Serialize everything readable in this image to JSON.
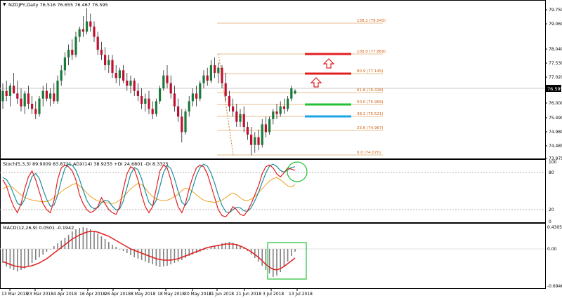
{
  "main_panel": {
    "header": "NZDJPY,Daily  76.516 76.655 76.467 76.595",
    "price_labels": [
      "79.750",
      "79.060",
      "78.040",
      "77.530",
      "77.020",
      "76.595",
      "76.000",
      "75.490",
      "74.980",
      "74.485",
      "73.975"
    ],
    "current_price": "76.595",
    "fib_levels": [
      {
        "label": "138.2 (79.043)",
        "price": 79.043
      },
      {
        "label": "100.0 (77.869)",
        "price": 77.869
      },
      {
        "label": "80.9 (77.145)",
        "price": 77.145
      },
      {
        "label": "61.8 (76.418)",
        "price": 76.418
      },
      {
        "label": "50.0 (75.969)",
        "price": 75.969
      },
      {
        "label": "38.2 (75.521)",
        "price": 75.521
      },
      {
        "label": "23.6 (74.967)",
        "price": 74.967
      },
      {
        "label": "0.0 (74.070)",
        "price": 74.07
      }
    ],
    "markers": {
      "resistance_color": "#e02020",
      "support_green": "#22c234",
      "support_blue": "#1aa3e6",
      "arrow_color": "#e02020"
    }
  },
  "stoch_panel": {
    "header": "Stoch(5,3,3) 89.9009 83.8721  ADX(14) 38.9255 +DI 24.6801 -DI 8.3325",
    "axis_labels": [
      "100",
      "80",
      "20",
      "0"
    ],
    "colors": {
      "main": "#e02020",
      "signal": "#1a8fa0",
      "adx": "#f0a020",
      "circle": "#22c234"
    }
  },
  "macd_panel": {
    "header": "MACD(12,26,9) 0.0501 -0.1942",
    "axis_labels": [
      "0.4305",
      "0.00",
      "-0.6946"
    ],
    "colors": {
      "hist": "#808080",
      "signal": "#e02020",
      "box": "#22c234"
    }
  },
  "time_axis": {
    "labels": [
      "13 Mar 2018",
      "23 Mar 2018",
      "4 Apr 2018",
      "16 Apr 2018",
      "26 Apr 2018",
      "8 May 2018",
      "18 May 2018",
      "30 May 2018",
      "11 Jun 2018",
      "21 Jun 2018",
      "3 Jul 2018",
      "13 Jul 2018"
    ]
  },
  "candles": {
    "up_color": "#1a7a3a",
    "down_color": "#c01030",
    "ohlc": [
      [
        76.2,
        76.9,
        75.9,
        76.6
      ],
      [
        76.6,
        77.0,
        76.2,
        76.4
      ],
      [
        76.4,
        76.9,
        76.0,
        76.8
      ],
      [
        76.8,
        77.3,
        76.5,
        76.5
      ],
      [
        76.5,
        77.0,
        76.1,
        76.3
      ],
      [
        76.3,
        76.7,
        75.8,
        76.0
      ],
      [
        76.0,
        76.6,
        75.7,
        76.5
      ],
      [
        76.5,
        76.8,
        75.9,
        76.1
      ],
      [
        76.1,
        76.4,
        75.7,
        75.9
      ],
      [
        75.9,
        76.2,
        75.5,
        75.7
      ],
      [
        75.7,
        76.4,
        75.6,
        76.3
      ],
      [
        76.3,
        76.8,
        76.0,
        76.6
      ],
      [
        76.6,
        76.9,
        76.2,
        76.3
      ],
      [
        76.3,
        76.7,
        76.0,
        76.5
      ],
      [
        76.5,
        76.9,
        76.1,
        76.2
      ],
      [
        76.2,
        77.2,
        76.1,
        77.0
      ],
      [
        77.0,
        77.6,
        76.8,
        77.4
      ],
      [
        77.4,
        78.1,
        77.2,
        77.9
      ],
      [
        77.9,
        78.4,
        77.6,
        78.2
      ],
      [
        78.2,
        78.6,
        77.8,
        78.0
      ],
      [
        78.0,
        78.9,
        77.9,
        78.7
      ],
      [
        78.7,
        79.1,
        78.5,
        79.0
      ],
      [
        79.0,
        79.5,
        78.7,
        78.9
      ],
      [
        78.9,
        79.8,
        78.8,
        79.3
      ],
      [
        79.3,
        79.6,
        78.9,
        79.1
      ],
      [
        79.1,
        79.3,
        78.5,
        78.7
      ],
      [
        78.7,
        78.9,
        78.0,
        78.2
      ],
      [
        78.2,
        78.5,
        77.8,
        78.0
      ],
      [
        78.0,
        78.3,
        77.4,
        77.6
      ],
      [
        77.6,
        78.0,
        77.3,
        77.8
      ],
      [
        77.8,
        78.0,
        77.1,
        77.3
      ],
      [
        77.3,
        77.6,
        76.9,
        77.1
      ],
      [
        77.1,
        77.5,
        76.8,
        77.4
      ],
      [
        77.4,
        77.6,
        76.9,
        77.0
      ],
      [
        77.0,
        77.3,
        76.6,
        76.8
      ],
      [
        76.8,
        77.2,
        76.5,
        77.0
      ],
      [
        77.0,
        77.1,
        76.4,
        76.6
      ],
      [
        76.6,
        76.9,
        76.2,
        76.4
      ],
      [
        76.4,
        76.7,
        75.9,
        76.1
      ],
      [
        76.1,
        76.5,
        75.8,
        76.3
      ],
      [
        76.3,
        76.6,
        75.7,
        75.9
      ],
      [
        75.9,
        76.2,
        75.5,
        75.7
      ],
      [
        75.7,
        76.3,
        75.6,
        76.2
      ],
      [
        76.2,
        76.8,
        76.1,
        76.7
      ],
      [
        76.7,
        77.4,
        76.6,
        77.2
      ],
      [
        77.2,
        77.6,
        76.7,
        76.9
      ],
      [
        76.9,
        77.2,
        76.3,
        76.5
      ],
      [
        76.5,
        76.8,
        75.8,
        76.0
      ],
      [
        76.0,
        76.3,
        75.4,
        75.6
      ],
      [
        75.6,
        75.9,
        74.6,
        75.0
      ],
      [
        75.0,
        75.9,
        74.9,
        75.8
      ],
      [
        75.8,
        76.4,
        75.6,
        76.2
      ],
      [
        76.2,
        76.7,
        76.0,
        76.5
      ],
      [
        76.5,
        76.8,
        76.0,
        76.3
      ],
      [
        76.3,
        77.0,
        76.2,
        76.9
      ],
      [
        76.9,
        77.4,
        76.7,
        77.2
      ],
      [
        77.2,
        77.5,
        76.8,
        77.0
      ],
      [
        77.0,
        77.8,
        76.9,
        77.6
      ],
      [
        77.6,
        77.9,
        77.1,
        77.3
      ],
      [
        77.3,
        77.7,
        76.9,
        77.5
      ],
      [
        77.5,
        77.6,
        76.7,
        76.9
      ],
      [
        76.9,
        77.3,
        76.2,
        76.4
      ],
      [
        76.4,
        76.6,
        75.8,
        76.0
      ],
      [
        76.0,
        76.3,
        75.6,
        75.8
      ],
      [
        75.8,
        76.1,
        75.2,
        75.4
      ],
      [
        75.4,
        75.9,
        75.2,
        75.7
      ],
      [
        75.7,
        76.0,
        75.0,
        75.2
      ],
      [
        75.2,
        75.4,
        74.7,
        74.9
      ],
      [
        74.9,
        75.2,
        74.1,
        74.5
      ],
      [
        74.5,
        75.0,
        74.2,
        74.8
      ],
      [
        74.8,
        75.1,
        74.3,
        74.5
      ],
      [
        74.5,
        75.5,
        74.4,
        75.3
      ],
      [
        75.3,
        75.6,
        74.8,
        75.0
      ],
      [
        75.0,
        75.6,
        74.9,
        75.5
      ],
      [
        75.5,
        75.9,
        75.3,
        75.8
      ],
      [
        75.8,
        76.1,
        75.5,
        75.7
      ],
      [
        75.7,
        76.2,
        75.6,
        76.0
      ],
      [
        76.0,
        76.3,
        75.7,
        75.9
      ],
      [
        75.9,
        76.4,
        75.8,
        76.3
      ],
      [
        76.3,
        76.8,
        76.2,
        76.7
      ],
      [
        76.5,
        76.66,
        76.47,
        76.6
      ]
    ]
  }
}
